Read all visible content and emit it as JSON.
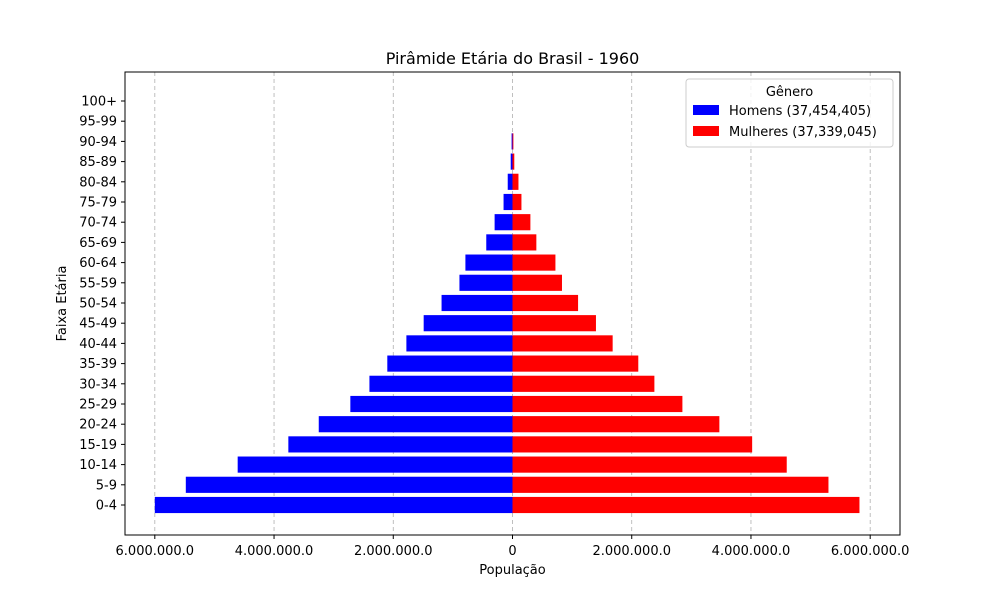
{
  "chart_data": {
    "type": "bar",
    "orientation": "horizontal",
    "title": "Pirâmide Etária do Brasil - 1960",
    "xlabel": "População",
    "ylabel": "Faixa Etária",
    "xlim": [
      -6500000,
      6500000
    ],
    "xticks": [
      -6000000,
      -4000000,
      -2000000,
      0,
      2000000,
      4000000,
      6000000
    ],
    "xtick_labels": [
      "6.000.000.0",
      "4.000.000.0",
      "2.000.000.0",
      "0",
      "2.000.000.0",
      "4.000.000.0",
      "6.000.000.0"
    ],
    "grid": "vertical-dashed",
    "legend_title": "Gênero",
    "legend_position": "top-right",
    "categories": [
      "0-4",
      "5-9",
      "10-14",
      "15-19",
      "20-24",
      "25-29",
      "30-34",
      "35-39",
      "40-44",
      "45-49",
      "50-54",
      "55-59",
      "60-64",
      "65-69",
      "70-74",
      "75-79",
      "80-84",
      "85-89",
      "90-94",
      "95-99",
      "100+"
    ],
    "series": [
      {
        "name": "Homens (37,454,405)",
        "color": "#0000ff",
        "side": "left",
        "values": [
          6000000,
          5480000,
          4610000,
          3760000,
          3250000,
          2720000,
          2400000,
          2100000,
          1780000,
          1490000,
          1190000,
          890000,
          790000,
          440000,
          300000,
          150000,
          80000,
          30000,
          15000,
          0,
          0
        ]
      },
      {
        "name": "Mulheres (37,339,045)",
        "color": "#ff0000",
        "side": "right",
        "values": [
          5820000,
          5300000,
          4600000,
          4020000,
          3470000,
          2850000,
          2380000,
          2110000,
          1680000,
          1400000,
          1100000,
          830000,
          720000,
          400000,
          300000,
          150000,
          100000,
          30000,
          15000,
          0,
          0
        ]
      }
    ]
  }
}
